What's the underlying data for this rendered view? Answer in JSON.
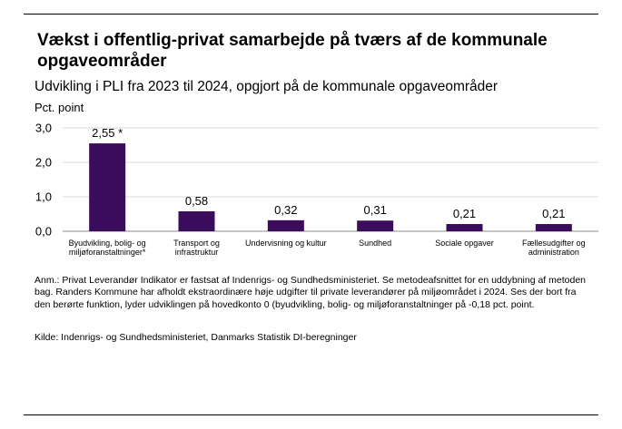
{
  "header": {
    "title": "Vækst i offentlig-privat samarbejde på tværs af de kommunale opgaveområder",
    "subtitle": "Udvikling i PLI fra 2023 til 2024, opgjort på de kommunale opgaveområder",
    "unit": "Pct. point"
  },
  "chart_data": {
    "type": "bar",
    "categories": [
      [
        "Byudvikling, bolig- og",
        "miljøforanstaltninger*"
      ],
      [
        "Transport og",
        "infrastruktur"
      ],
      [
        "Undervisning og kultur"
      ],
      [
        "Sundhed"
      ],
      [
        "Sociale opgaver"
      ],
      [
        "Fællesudgifter og",
        "administration"
      ]
    ],
    "values": [
      2.55,
      0.58,
      0.32,
      0.31,
      0.21,
      0.21
    ],
    "data_labels": [
      "2,55 *",
      "0,58",
      "0,32",
      "0,31",
      "0,21",
      "0,21"
    ],
    "yticks": [
      0,
      1,
      2,
      3
    ],
    "ytick_labels": [
      "0,0",
      "1,0",
      "2,0",
      "3,0"
    ],
    "ylim": [
      0,
      3
    ],
    "grid": true,
    "bar_color": "#3b0b5c",
    "grid_color": "#d9d9d9"
  },
  "footer": {
    "note": "Anm.: Privat Leverandør Indikator er fastsat af Indenrigs- og Sundhedsministeriet. Se metodeafsnittet for en uddybning af metoden bag. Randers Kommune har afholdt ekstraordinære høje udgifter til private leverandører på miljøområdet i 2024. Ses der bort fra den berørte funktion, lyder udviklingen på hovedkonto 0 (byudvikling, bolig- og miljøforanstaltninger på -0,18 pct. point.",
    "source": "Kilde:  Indenrigs- og Sundhedsministeriet, Danmarks Statistik DI-beregninger"
  }
}
